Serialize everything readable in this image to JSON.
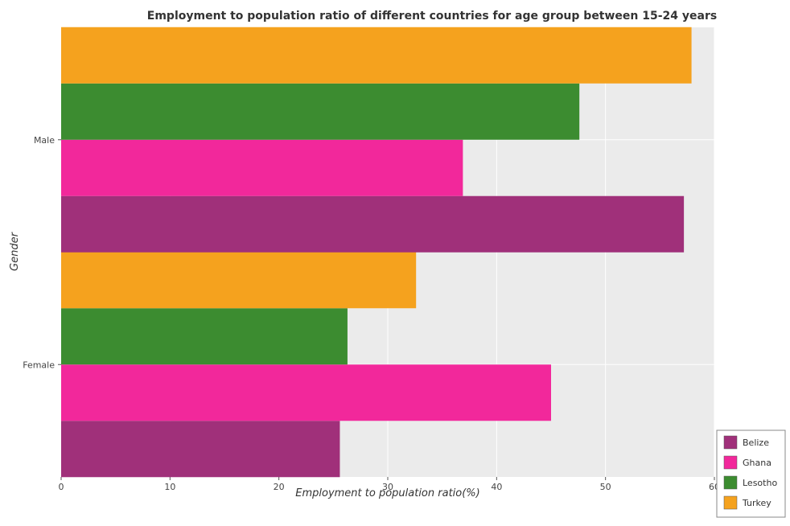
{
  "chart_data": {
    "type": "bar",
    "orientation": "horizontal",
    "title": "Employment to population ratio of different countries for age group between 15-24 years",
    "xlabel": "Employment to population ratio(%)",
    "ylabel": "Gender",
    "categories": [
      "Female",
      "Male"
    ],
    "xlim": [
      0,
      60
    ],
    "xticks": [
      0,
      10,
      20,
      30,
      40,
      50,
      60
    ],
    "series": [
      {
        "name": "Belize",
        "color": "#a0307a",
        "values": [
          25.6,
          57.2
        ]
      },
      {
        "name": "Ghana",
        "color": "#f2289b",
        "values": [
          45.0,
          36.9
        ]
      },
      {
        "name": "Lesotho",
        "color": "#3c8c30",
        "values": [
          26.3,
          47.6
        ]
      },
      {
        "name": "Turkey",
        "color": "#f5a21e",
        "values": [
          32.6,
          57.9
        ]
      }
    ],
    "legend_position": "bottom-right",
    "grid": true
  }
}
